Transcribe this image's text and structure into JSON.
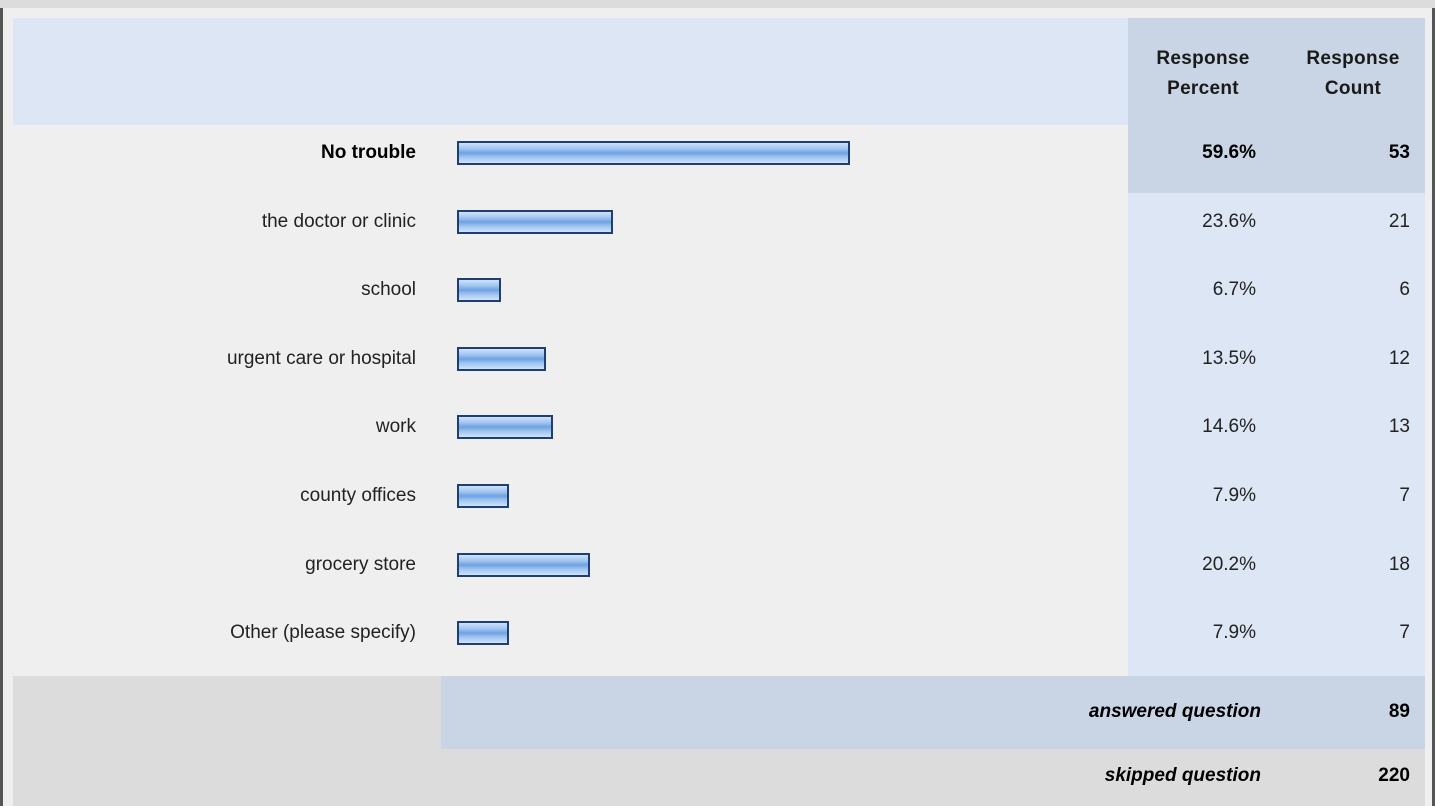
{
  "header": {
    "percent_label_1": "Response",
    "percent_label_2": "Percent",
    "count_label_1": "Response",
    "count_label_2": "Count"
  },
  "chart_data": {
    "type": "bar",
    "orientation": "horizontal",
    "categories": [
      "No trouble",
      "the doctor or clinic",
      "school",
      "urgent care or hospital",
      "work",
      "county offices",
      "grocery store",
      "Other (please specify)"
    ],
    "percent_labels": [
      "59.6%",
      "23.6%",
      "6.7%",
      "13.5%",
      "14.6%",
      "7.9%",
      "20.2%",
      "7.9%"
    ],
    "values": [
      59.6,
      23.6,
      6.7,
      13.5,
      14.6,
      7.9,
      20.2,
      7.9
    ],
    "counts": [
      "53",
      "21",
      "6",
      "12",
      "13",
      "7",
      "18",
      "7"
    ],
    "highlight_first_row": true
  },
  "footer": {
    "answered_label": "answered question",
    "answered_value": "89",
    "skipped_label": "skipped question",
    "skipped_value": "220"
  },
  "colors": {
    "bar_border": "#1f3f70",
    "bar_fill": "#8fb8ec",
    "header_bg": "#dce6f4",
    "highlight_bg": "#c9d5e4"
  }
}
